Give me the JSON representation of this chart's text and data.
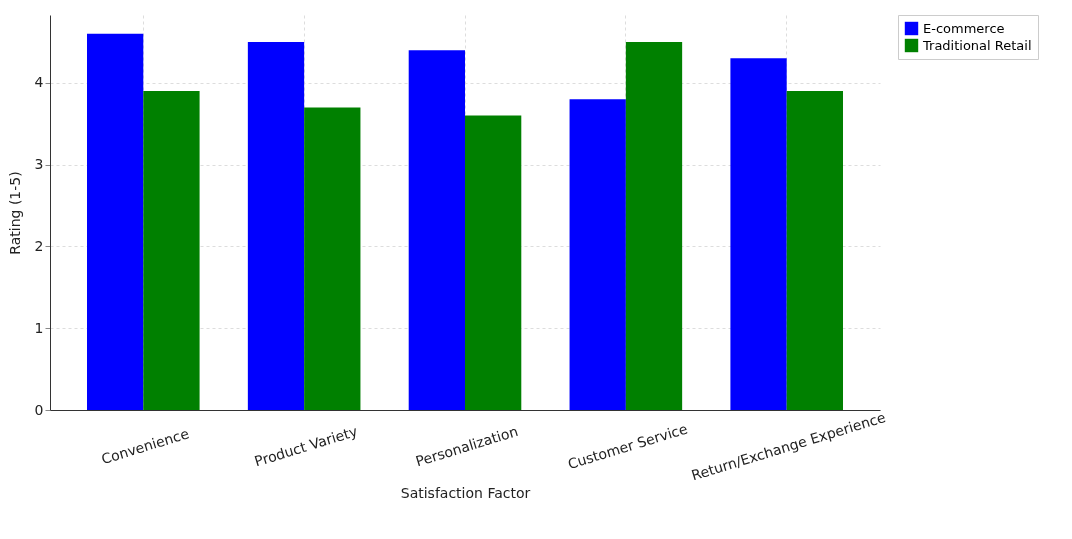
{
  "chart_data": {
    "type": "bar",
    "xlabel": "Satisfaction Factor",
    "ylabel": "Rating (1-5)",
    "categories": [
      "Convenience",
      "Product Variety",
      "Personalization",
      "Customer Service",
      "Return/Exchange Experience"
    ],
    "series": [
      {
        "name": "E-commerce",
        "color": "#0000ff",
        "values": [
          4.6,
          4.5,
          4.4,
          3.8,
          4.3
        ]
      },
      {
        "name": "Traditional Retail",
        "color": "#008000",
        "values": [
          3.9,
          3.7,
          3.6,
          4.5,
          3.9
        ]
      }
    ],
    "ylim": [
      0,
      4.83
    ],
    "yticks": [
      0,
      1,
      2,
      3,
      4
    ],
    "grid": true,
    "legend": "top right"
  }
}
